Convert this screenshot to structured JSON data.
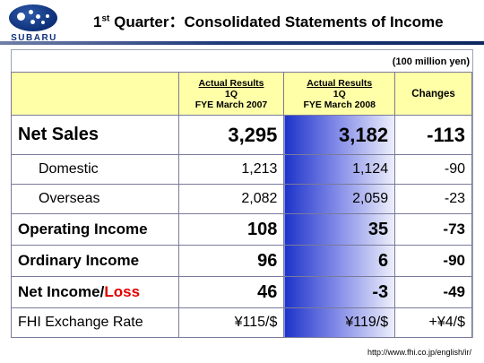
{
  "brand": {
    "logo_text": "SUBARU"
  },
  "slide": {
    "title_prefix": "1",
    "title_sup": "st",
    "title_rest": " Quarter：Consolidated Statements of Income",
    "unit": "(100 million yen)",
    "footer_url": "http://www.fhi.co.jp/english/ir/"
  },
  "table": {
    "headers": {
      "col_a": {
        "line1": "Actual Results",
        "line2": "1Q",
        "line3": "FYE March 2007"
      },
      "col_b": {
        "line1": "Actual Results",
        "line2": "1Q",
        "line3": "FYE March 2008"
      },
      "changes": "Changes"
    },
    "rows": [
      {
        "label": "Net Sales",
        "a": "3,295",
        "b": "3,182",
        "change": "-113"
      },
      {
        "label": "Domestic",
        "a": "1,213",
        "b": "1,124",
        "change": "-90"
      },
      {
        "label": "Overseas",
        "a": "2,082",
        "b": "2,059",
        "change": "-23"
      },
      {
        "label": "Operating Income",
        "a": "108",
        "b": "35",
        "change": "-73"
      },
      {
        "label": "Ordinary Income",
        "a": "96",
        "b": "6",
        "change": "-90"
      },
      {
        "label_main": "Net Income/",
        "label_loss": "Loss",
        "a": "46",
        "b": "-3",
        "change": "-49"
      },
      {
        "label": "FHI Exchange Rate",
        "a": "¥115/$",
        "b": "¥119/$",
        "change": "+¥4/$"
      }
    ]
  },
  "colors": {
    "negative": "#e00000",
    "header_bg": "#ffffa8",
    "highlight_start": "#1d33c9",
    "brand_navy": "#0d2f78"
  }
}
